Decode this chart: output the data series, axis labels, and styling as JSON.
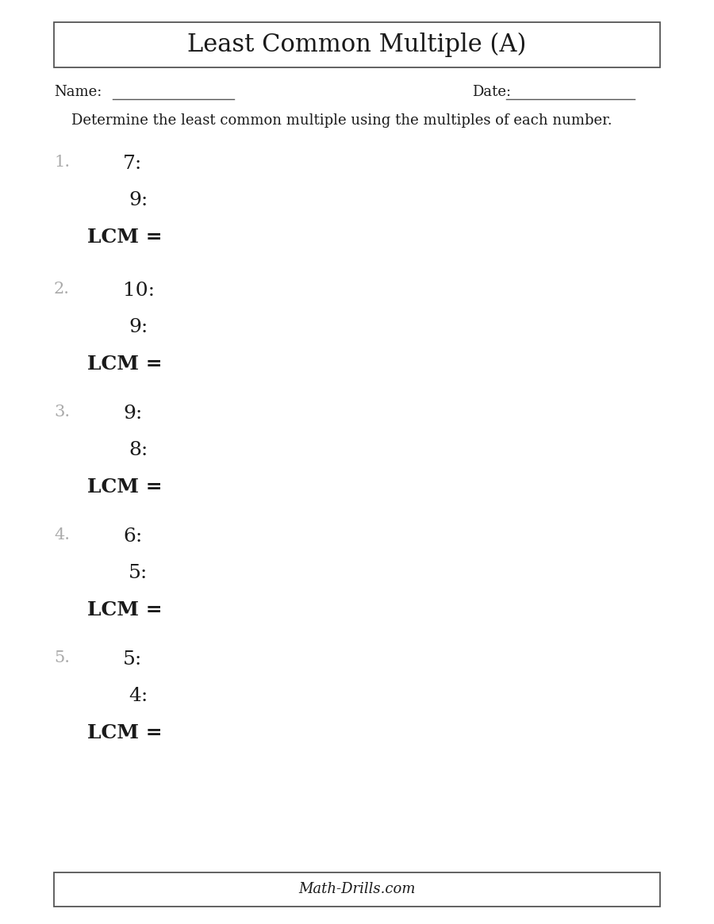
{
  "title": "Least Common Multiple (A)",
  "footer": "Math-Drills.com",
  "name_label": "Name:",
  "date_label": "Date:",
  "instruction": "Determine the least common multiple using the multiples of each number.",
  "problems": [
    {
      "num": "1.",
      "n1": "7:",
      "n2": "9:",
      "lcm": "LCM ="
    },
    {
      "num": "2.",
      "n1": "10:",
      "n2": "9:",
      "lcm": "LCM ="
    },
    {
      "num": "3.",
      "n1": "9:",
      "n2": "8:",
      "lcm": "LCM ="
    },
    {
      "num": "4.",
      "n1": "6:",
      "n2": "5:",
      "lcm": "LCM ="
    },
    {
      "num": "5.",
      "n1": "5:",
      "n2": "4:",
      "lcm": "LCM ="
    }
  ],
  "bg_color": "#ffffff",
  "text_color": "#1a1a1a",
  "number_color": "#aaaaaa",
  "title_fontsize": 22,
  "label_fontsize": 13,
  "instruction_fontsize": 13,
  "problem_num_fontsize": 15,
  "problem_fontsize": 18,
  "footer_fontsize": 13
}
